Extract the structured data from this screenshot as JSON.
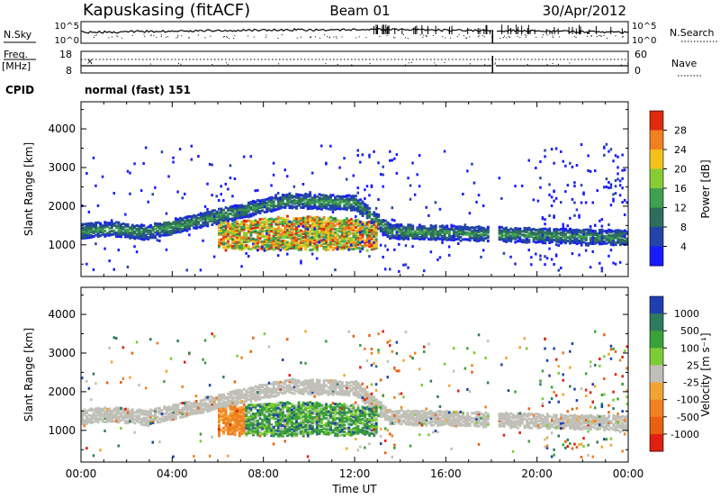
{
  "header": {
    "station": "Kapuskasing (fitACF)",
    "beam": "Beam 01",
    "date": "30/Apr/2012"
  },
  "summary_panels": {
    "nsky_label": "N.Sky",
    "nsky_ticks": [
      "10^5",
      "10^0"
    ],
    "nsearch_label": "N.Search",
    "nsearch_ticks": [
      "10^5",
      "10^0"
    ],
    "freq_label": "Freq.",
    "freq_unit": "[MHz]",
    "freq_ticks": [
      "18",
      "8"
    ],
    "nave_label": "Nave",
    "nave_ticks": [
      "60",
      "0"
    ],
    "cpid_label": "CPID",
    "cpid_value": "normal (fast) 151"
  },
  "chart_data": [
    {
      "type": "heatmap",
      "title": "",
      "parameter": "Power",
      "ylabel": "Slant Range [km]",
      "xlabel": "",
      "x_ticks": [
        "00:00",
        "04:00",
        "08:00",
        "12:00",
        "16:00",
        "20:00",
        "00:00"
      ],
      "x_range_hours": [
        0,
        24
      ],
      "y_ticks": [
        1000,
        2000,
        3000,
        4000
      ],
      "ylim": [
        180,
        4700
      ],
      "colorbar": {
        "label": "Power [dB]",
        "ticks": [
          "4",
          "8",
          "12",
          "16",
          "20",
          "24",
          "28"
        ],
        "colors": [
          "#1a1aff",
          "#2244a8",
          "#2e6e5c",
          "#3ea050",
          "#88cc33",
          "#f2c21a",
          "#f08020",
          "#e02a10"
        ]
      },
      "features": [
        {
          "name": "main echo band",
          "t_start": 0.0,
          "t_end": 24.0,
          "range_km": "1000-2250"
        },
        {
          "name": "strong echoes",
          "t_start": 6.0,
          "t_end": 13.0,
          "range_km": "900-1700",
          "power_db": "12-28"
        }
      ]
    },
    {
      "type": "heatmap",
      "title": "",
      "parameter": "Velocity",
      "ylabel": "Slant Range [km]",
      "xlabel": "Time UT",
      "x_ticks": [
        "00:00",
        "04:00",
        "08:00",
        "12:00",
        "16:00",
        "20:00",
        "00:00"
      ],
      "x_range_hours": [
        0,
        24
      ],
      "y_ticks": [
        1000,
        2000,
        3000,
        4000
      ],
      "ylim": [
        180,
        4700
      ],
      "colorbar": {
        "label": "Velocity [m s⁻¹]",
        "ticks": [
          "1000",
          "500",
          "100",
          "25",
          "-25",
          "-100",
          "-500",
          "-1000"
        ],
        "colors": [
          "#1f3fb0",
          "#2e7a5e",
          "#3aa13a",
          "#7ccc33",
          "#c0c0b8",
          "#f2a433",
          "#f08020",
          "#e86010",
          "#e02010"
        ]
      },
      "features": [
        {
          "name": "ground scatter band",
          "velocity": "-25 to 25"
        },
        {
          "name": "negative velocity patch",
          "t_start": 6.0,
          "t_end": 7.2,
          "velocity": "-100 to -500"
        },
        {
          "name": "positive velocity patch",
          "t_start": 7.2,
          "t_end": 12.8,
          "velocity": "100 to 1000"
        }
      ]
    }
  ]
}
